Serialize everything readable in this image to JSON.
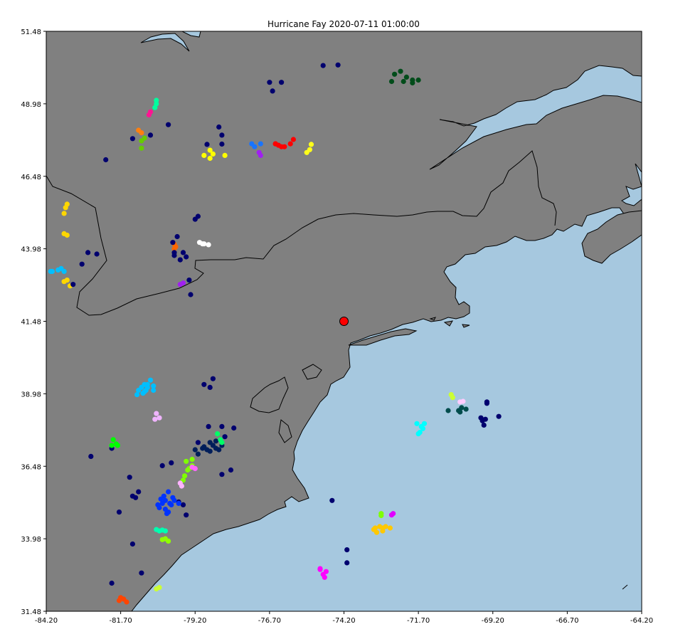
{
  "colors": {
    "water": "#a6c8df",
    "land": "#808080",
    "border": "#000000",
    "center": "#ff0000"
  },
  "chart_data": {
    "type": "scatter",
    "title": "Hurricane Fay 2020-07-11 01:00:00",
    "xlim": [
      -84.2,
      -64.2
    ],
    "ylim": [
      31.48,
      51.48
    ],
    "xticks": [
      -84.2,
      -81.7,
      -79.2,
      -76.7,
      -74.2,
      -71.7,
      -69.2,
      -66.7,
      -64.2
    ],
    "yticks": [
      31.48,
      33.98,
      36.48,
      38.98,
      41.48,
      43.98,
      46.48,
      48.98,
      51.48
    ],
    "xtick_labels": [
      "-84.20",
      "-81.70",
      "-79.20",
      "-76.70",
      "-74.20",
      "-71.70",
      "-69.20",
      "-66.70",
      "-64.20"
    ],
    "ytick_labels": [
      "31.48",
      "33.98",
      "36.48",
      "38.98",
      "41.48",
      "43.98",
      "46.48",
      "48.98",
      "51.48"
    ],
    "hurricane_center": {
      "lon": -74.2,
      "lat": 41.48
    },
    "clusters": [
      {
        "color": "#00006e",
        "points": [
          [
            -74.4,
            50.32
          ],
          [
            -74.9,
            50.3
          ],
          [
            -76.3,
            49.72
          ],
          [
            -76.7,
            49.72
          ],
          [
            -76.6,
            49.42
          ],
          [
            -78.4,
            48.18
          ],
          [
            -78.3,
            47.9
          ],
          [
            -78.8,
            47.58
          ],
          [
            -78.3,
            47.59
          ],
          [
            -80.7,
            47.9
          ],
          [
            -80.1,
            48.26
          ],
          [
            -81.3,
            47.78
          ],
          [
            -82.2,
            47.05
          ]
        ]
      },
      {
        "color": "#004c1a",
        "points": [
          [
            -72.3,
            50.1
          ],
          [
            -72.5,
            50.0
          ],
          [
            -72.1,
            49.9
          ],
          [
            -71.7,
            49.8
          ],
          [
            -71.9,
            49.7
          ],
          [
            -72.6,
            49.75
          ],
          [
            -72.2,
            49.75
          ],
          [
            -71.9,
            49.8
          ]
        ]
      },
      {
        "color": "#00ff9e",
        "points": [
          [
            -80.5,
            49.1
          ],
          [
            -80.5,
            48.98
          ],
          [
            -80.55,
            48.85
          ]
        ]
      },
      {
        "color": "#ff1493",
        "points": [
          [
            -80.7,
            48.7
          ],
          [
            -80.75,
            48.6
          ]
        ]
      },
      {
        "color": "#ff7f0e",
        "points": [
          [
            -81.1,
            48.07
          ],
          [
            -81.0,
            47.98
          ]
        ]
      },
      {
        "color": "#66cc00",
        "points": [
          [
            -80.9,
            47.8
          ],
          [
            -81.0,
            47.7
          ],
          [
            -81.0,
            47.45
          ]
        ]
      },
      {
        "color": "#ffff00",
        "points": [
          [
            -78.7,
            47.38
          ],
          [
            -78.6,
            47.25
          ],
          [
            -78.2,
            47.2
          ],
          [
            -78.7,
            47.1
          ],
          [
            -78.9,
            47.2
          ]
        ]
      },
      {
        "color": "#1874ff",
        "points": [
          [
            -77.3,
            47.6
          ],
          [
            -77.2,
            47.5
          ],
          [
            -77.0,
            47.6
          ]
        ]
      },
      {
        "color": "#a020f0",
        "points": [
          [
            -77.05,
            47.3
          ],
          [
            -77.0,
            47.2
          ]
        ]
      },
      {
        "color": "#ff0000",
        "points": [
          [
            -76.4,
            47.55
          ],
          [
            -76.2,
            47.5
          ],
          [
            -75.9,
            47.75
          ],
          [
            -76.0,
            47.6
          ],
          [
            -76.5,
            47.6
          ],
          [
            -76.3,
            47.5
          ],
          [
            -76.5,
            47.6
          ]
        ]
      },
      {
        "color": "#ffff1a",
        "points": [
          [
            -75.3,
            47.58
          ],
          [
            -75.35,
            47.4
          ],
          [
            -75.45,
            47.3
          ]
        ]
      },
      {
        "color": "#ffd700",
        "points": [
          [
            -83.5,
            45.52
          ],
          [
            -83.55,
            45.4
          ],
          [
            -83.6,
            45.2
          ],
          [
            -83.6,
            44.5
          ],
          [
            -83.5,
            44.45
          ],
          [
            -83.5,
            42.9
          ],
          [
            -83.6,
            42.85
          ],
          [
            -83.4,
            42.7
          ]
        ]
      },
      {
        "color": "#ff6600",
        "points": [
          [
            -79.9,
            44.14
          ],
          [
            -79.9,
            43.98
          ],
          [
            -79.85,
            44.05
          ]
        ]
      },
      {
        "color": "#ffffff",
        "points": [
          [
            -79.05,
            44.2
          ],
          [
            -78.9,
            44.15
          ],
          [
            -78.75,
            44.12
          ],
          [
            -78.95,
            44.15
          ]
        ]
      },
      {
        "color": "#00bfff",
        "points": [
          [
            -83.8,
            43.25
          ],
          [
            -84.0,
            43.2
          ],
          [
            -83.6,
            43.2
          ],
          [
            -83.7,
            43.3
          ],
          [
            -84.05,
            43.2
          ]
        ]
      },
      {
        "color": "#a020f0",
        "points": [
          [
            -79.7,
            42.75
          ],
          [
            -79.6,
            42.8
          ]
        ]
      },
      {
        "color": "#00006e",
        "points": [
          [
            -79.8,
            44.4
          ],
          [
            -79.95,
            44.2
          ],
          [
            -79.2,
            45.0
          ],
          [
            -79.1,
            45.1
          ],
          [
            -79.6,
            43.85
          ],
          [
            -79.9,
            43.75
          ],
          [
            -79.9,
            43.85
          ],
          [
            -79.5,
            43.7
          ],
          [
            -79.7,
            43.6
          ],
          [
            -79.4,
            42.9
          ],
          [
            -79.35,
            42.4
          ],
          [
            -83.3,
            42.75
          ],
          [
            -83.0,
            43.45
          ],
          [
            -82.8,
            43.85
          ],
          [
            -82.5,
            43.8
          ]
        ]
      },
      {
        "color": "#00bfff",
        "points": [
          [
            -80.7,
            39.45
          ],
          [
            -80.9,
            39.3
          ],
          [
            -81.0,
            39.2
          ],
          [
            -80.8,
            39.2
          ],
          [
            -80.6,
            39.1
          ],
          [
            -80.9,
            39.05
          ],
          [
            -81.1,
            39.1
          ],
          [
            -81.15,
            38.95
          ],
          [
            -80.95,
            39.0
          ],
          [
            -80.8,
            39.3
          ],
          [
            -80.6,
            39.25
          ],
          [
            -80.85,
            39.1
          ]
        ]
      },
      {
        "color": "#f0b4ff",
        "points": [
          [
            -80.5,
            38.3
          ],
          [
            -80.55,
            38.1
          ],
          [
            -80.4,
            38.15
          ]
        ]
      },
      {
        "color": "#00006e",
        "points": [
          [
            -78.6,
            39.5
          ],
          [
            -78.7,
            39.2
          ],
          [
            -78.9,
            39.3
          ],
          [
            -78.3,
            37.85
          ],
          [
            -77.9,
            37.8
          ],
          [
            -78.75,
            37.85
          ],
          [
            -78.2,
            37.5
          ],
          [
            -79.1,
            37.3
          ],
          [
            -82.0,
            37.1
          ],
          [
            -82.7,
            36.82
          ],
          [
            -81.4,
            36.1
          ],
          [
            -81.1,
            35.6
          ],
          [
            -81.3,
            35.45
          ],
          [
            -81.2,
            35.4
          ],
          [
            -81.75,
            34.9
          ],
          [
            -81.3,
            33.8
          ],
          [
            -81.0,
            32.8
          ],
          [
            -82.0,
            32.45
          ],
          [
            -79.75,
            35.25
          ],
          [
            -79.6,
            35.15
          ],
          [
            -79.5,
            34.8
          ],
          [
            -80.0,
            36.6
          ],
          [
            -80.3,
            36.5
          ],
          [
            -78.0,
            36.35
          ],
          [
            -78.3,
            36.2
          ],
          [
            -74.6,
            35.3
          ],
          [
            -74.1,
            33.6
          ],
          [
            -74.1,
            33.15
          ]
        ]
      },
      {
        "color": "#001e5a",
        "points": [
          [
            -78.3,
            37.2
          ],
          [
            -78.5,
            37.1
          ],
          [
            -78.7,
            37.0
          ],
          [
            -79.2,
            37.05
          ],
          [
            -78.95,
            37.1
          ],
          [
            -78.7,
            37.3
          ],
          [
            -78.5,
            37.35
          ],
          [
            -79.1,
            36.9
          ],
          [
            -78.9,
            37.15
          ],
          [
            -78.6,
            37.2
          ],
          [
            -78.8,
            37.05
          ],
          [
            -78.4,
            37.05
          ]
        ]
      },
      {
        "color": "#00ff66",
        "points": [
          [
            -78.3,
            37.3
          ],
          [
            -78.45,
            37.6
          ],
          [
            -78.35,
            37.4
          ]
        ]
      },
      {
        "color": "#7fff00",
        "points": [
          [
            -79.3,
            36.72
          ],
          [
            -79.5,
            36.65
          ],
          [
            -79.3,
            36.5
          ],
          [
            -79.4,
            36.4
          ],
          [
            -79.45,
            36.35
          ],
          [
            -79.55,
            36.15
          ],
          [
            -79.6,
            36.0
          ]
        ]
      },
      {
        "color": "#ff66ff",
        "points": [
          [
            -79.3,
            36.45
          ],
          [
            -79.2,
            36.4
          ]
        ]
      },
      {
        "color": "#ffb3ff",
        "points": [
          [
            -79.7,
            35.9
          ],
          [
            -79.65,
            35.8
          ]
        ]
      },
      {
        "color": "#00ff00",
        "points": [
          [
            -81.95,
            37.4
          ],
          [
            -82.0,
            37.2
          ],
          [
            -81.85,
            37.25
          ],
          [
            -81.8,
            37.2
          ]
        ]
      },
      {
        "color": "#0033ff",
        "points": [
          [
            -80.1,
            35.6
          ],
          [
            -79.95,
            35.4
          ],
          [
            -80.2,
            35.3
          ],
          [
            -80.3,
            35.2
          ],
          [
            -80.0,
            35.15
          ],
          [
            -80.4,
            35.05
          ],
          [
            -80.1,
            34.9
          ],
          [
            -79.9,
            35.3
          ],
          [
            -80.25,
            35.45
          ],
          [
            -80.45,
            35.15
          ],
          [
            -80.05,
            35.2
          ],
          [
            -80.2,
            35.0
          ],
          [
            -80.15,
            34.85
          ],
          [
            -80.35,
            35.35
          ],
          [
            -79.75,
            35.2
          ]
        ]
      },
      {
        "color": "#00ffb0",
        "points": [
          [
            -80.5,
            34.3
          ],
          [
            -80.2,
            34.25
          ],
          [
            -80.3,
            34.28
          ],
          [
            -80.4,
            34.25
          ]
        ]
      },
      {
        "color": "#90ff00",
        "points": [
          [
            -80.3,
            33.95
          ],
          [
            -80.1,
            33.9
          ],
          [
            -80.2,
            33.98
          ]
        ]
      },
      {
        "color": "#ff4500",
        "points": [
          [
            -81.7,
            31.95
          ],
          [
            -81.6,
            31.9
          ],
          [
            -81.5,
            31.8
          ],
          [
            -81.75,
            31.85
          ]
        ]
      },
      {
        "color": "#ccff33",
        "points": [
          [
            -80.5,
            32.25
          ],
          [
            -80.4,
            32.3
          ]
        ]
      },
      {
        "color": "#ff00ff",
        "points": [
          [
            -75.0,
            32.92
          ],
          [
            -74.8,
            32.85
          ],
          [
            -74.9,
            32.75
          ],
          [
            -75.0,
            32.95
          ],
          [
            -74.85,
            32.65
          ]
        ]
      },
      {
        "color": "#ffc800",
        "points": [
          [
            -73.2,
            34.3
          ],
          [
            -73.1,
            34.2
          ],
          [
            -72.9,
            34.35
          ],
          [
            -73.0,
            34.4
          ],
          [
            -72.8,
            34.4
          ],
          [
            -73.15,
            34.35
          ],
          [
            -72.65,
            34.35
          ],
          [
            -72.9,
            34.25
          ]
        ]
      },
      {
        "color": "#7fff00",
        "points": [
          [
            -72.95,
            34.78
          ],
          [
            -72.95,
            34.85
          ]
        ]
      },
      {
        "color": "#e000ff",
        "points": [
          [
            -72.55,
            34.85
          ],
          [
            -72.6,
            34.8
          ]
        ]
      },
      {
        "color": "#00ffff",
        "points": [
          [
            -71.5,
            37.95
          ],
          [
            -71.55,
            37.78
          ],
          [
            -71.65,
            37.65
          ],
          [
            -71.75,
            37.95
          ],
          [
            -71.6,
            37.85
          ],
          [
            -71.7,
            37.6
          ]
        ]
      },
      {
        "color": "#ccff33",
        "points": [
          [
            -70.6,
            38.95
          ],
          [
            -70.55,
            38.85
          ]
        ]
      },
      {
        "color": "#ffccff",
        "points": [
          [
            -70.2,
            38.72
          ],
          [
            -70.3,
            38.7
          ]
        ]
      },
      {
        "color": "#004c4c",
        "points": [
          [
            -70.7,
            38.4
          ],
          [
            -70.3,
            38.35
          ],
          [
            -70.25,
            38.5
          ],
          [
            -70.35,
            38.4
          ],
          [
            -70.1,
            38.45
          ]
        ]
      },
      {
        "color": "#00006e",
        "points": [
          [
            -69.4,
            38.7
          ],
          [
            -69.4,
            38.65
          ],
          [
            -69.6,
            38.15
          ],
          [
            -69.45,
            38.1
          ],
          [
            -69.55,
            38.05
          ],
          [
            -69.5,
            37.9
          ],
          [
            -69.0,
            38.2
          ]
        ]
      }
    ]
  }
}
